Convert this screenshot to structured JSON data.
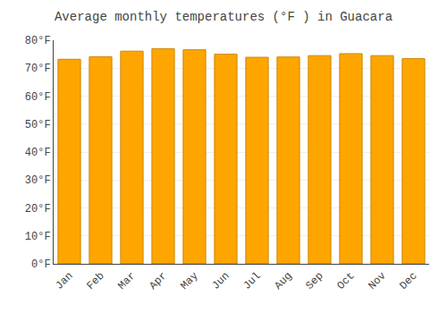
{
  "chart_data": {
    "type": "bar",
    "title": "Average monthly temperatures (°F ) in Guacara",
    "categories": [
      "Jan",
      "Feb",
      "Mar",
      "Apr",
      "May",
      "Jun",
      "Jul",
      "Aug",
      "Sep",
      "Oct",
      "Nov",
      "Dec"
    ],
    "values": [
      73.2,
      74.1,
      76.1,
      77.0,
      76.6,
      75.0,
      73.9,
      74.0,
      74.5,
      75.2,
      74.5,
      73.4
    ],
    "color": "#FFA500",
    "ylim": [
      0,
      80
    ],
    "yticks": [
      {
        "value": 0,
        "label": "0°F"
      },
      {
        "value": 10,
        "label": "10°F"
      },
      {
        "value": 20,
        "label": "20°F"
      },
      {
        "value": 30,
        "label": "30°F"
      },
      {
        "value": 40,
        "label": "40°F"
      },
      {
        "value": 50,
        "label": "50°F"
      },
      {
        "value": 60,
        "label": "60°F"
      },
      {
        "value": 70,
        "label": "70°F"
      },
      {
        "value": 80,
        "label": "80°F"
      }
    ],
    "grid": true
  }
}
